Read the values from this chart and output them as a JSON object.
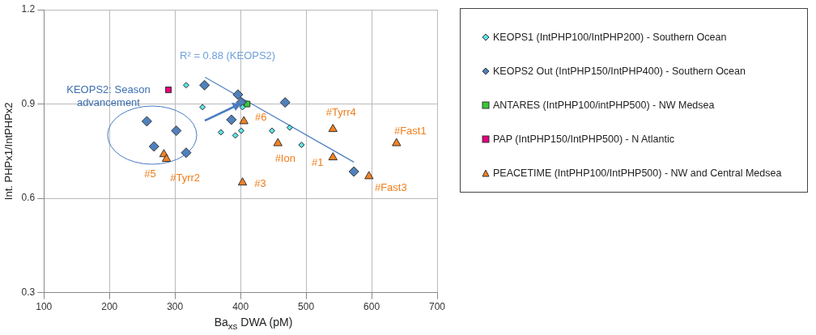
{
  "chart_data": {
    "type": "scatter",
    "xlabel": "Ba$_{xs}$ DWA (pM)",
    "ylabel": "Int. PHPx1/IntPHPx2",
    "xlim": [
      100,
      700
    ],
    "xticks": [
      100,
      200,
      300,
      400,
      500,
      600,
      700
    ],
    "ylim": [
      0.3,
      1.2
    ],
    "yticks": [
      {
        "value": 0.3,
        "label": "0.3"
      },
      {
        "value": 0.6,
        "label": "0.6"
      },
      {
        "value": 0.9,
        "label": "0.9"
      },
      {
        "value": 1.2,
        "label": "1.2"
      }
    ],
    "grid": true,
    "legend": "right",
    "series": [
      {
        "name": "KEOPS1 (IntPHP100/IntPHP200) - Southern Ocean",
        "color": "#5ce1e6",
        "marker": "diamond",
        "x": [
          317,
          342,
          370,
          392,
          401,
          403,
          448,
          475,
          493
        ],
        "values": [
          0.96,
          0.89,
          0.81,
          0.8,
          0.815,
          0.89,
          0.815,
          0.825,
          0.77
        ]
      },
      {
        "name": "KEOPS2 Out (IntPHP150/IntPHP400) - Southern Ocean",
        "color": "#4f81bd",
        "marker": "diamond",
        "x": [
          345,
          257,
          302,
          268,
          317,
          386,
          396,
          401,
          468,
          573
        ],
        "values": [
          0.96,
          0.845,
          0.815,
          0.765,
          0.745,
          0.85,
          0.93,
          0.905,
          0.905,
          0.685
        ]
      },
      {
        "name": "ANTARES (IntPHP100/intPHP500) - NW Medsea",
        "color": "#33cc33",
        "marker": "square",
        "x": [
          410
        ],
        "values": [
          0.9
        ]
      },
      {
        "name": "PAP (IntPHP150/IntPHP500) - N Atlantic",
        "color": "#e6007e",
        "marker": "square",
        "x": [
          290
        ],
        "values": [
          0.945
        ]
      },
      {
        "name": "PEACETIME (IntPHP100/IntPHP500) - NW and Central Medsea",
        "color": "#f58220",
        "marker": "triangle",
        "x": [
          283,
          287,
          405,
          403,
          457,
          541,
          541,
          638,
          596
        ],
        "values": [
          0.74,
          0.725,
          0.845,
          0.65,
          0.775,
          0.73,
          0.82,
          0.775,
          0.67
        ]
      },
      {
        "type": "line",
        "color": "#4a7cc0",
        "marker": "none",
        "x": [
          346,
          573
        ],
        "values": [
          0.985,
          0.715
        ]
      }
    ],
    "annotations": [
      "R² = 0.88 (KEOPS2)",
      "KEOPS2: Season advancement",
      {
        "text": "#5",
        "x": 283,
        "y": 0.74
      },
      {
        "text": "#Tyrr2",
        "x": 287,
        "y": 0.725
      },
      {
        "text": "#6",
        "x": 405,
        "y": 0.845
      },
      {
        "text": "#3",
        "x": 403,
        "y": 0.65
      },
      {
        "text": "#Ion",
        "x": 457,
        "y": 0.775
      },
      {
        "text": "#1",
        "x": 541,
        "y": 0.73
      },
      {
        "text": "#Tyrr4",
        "x": 541,
        "y": 0.82
      },
      {
        "text": "#Fast1",
        "x": 638,
        "y": 0.775
      },
      {
        "text": "#Fast3",
        "x": 596,
        "y": 0.67
      }
    ]
  }
}
